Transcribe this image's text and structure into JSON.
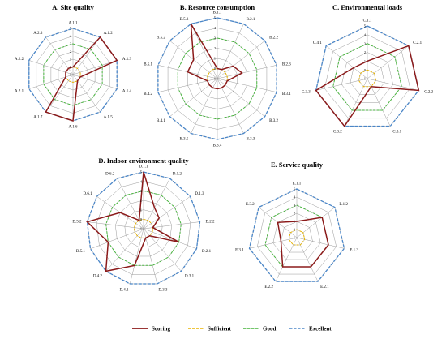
{
  "chart_data": [
    {
      "type": "radar",
      "title": "A. Site quality",
      "axes": [
        "A.1.1",
        "A.1.2",
        "A.1.3",
        "A.1.4",
        "A.1.5",
        "A.1.6",
        "A.1.7",
        "A.2.1",
        "A.2.2",
        "A.2.3"
      ],
      "range": [
        -1,
        5
      ],
      "ticks": [
        "-1",
        "0",
        "1",
        "2",
        "3",
        "4",
        "5"
      ],
      "series": [
        {
          "name": "Scoring",
          "values": [
            0,
            5,
            5,
            0,
            0,
            5,
            5,
            0,
            0,
            0
          ]
        },
        {
          "name": "Sufficient",
          "values": [
            0,
            0,
            0,
            0,
            0,
            0,
            0,
            0,
            0,
            0
          ]
        },
        {
          "name": "Good",
          "values": [
            3,
            3,
            3,
            3,
            3,
            3,
            3,
            3,
            3,
            3
          ]
        },
        {
          "name": "Excellent",
          "values": [
            5,
            5,
            5,
            5,
            5,
            5,
            5,
            5,
            5,
            5
          ]
        }
      ]
    },
    {
      "type": "radar",
      "title": "B. Resource consumption",
      "axes": [
        "B.1.1",
        "B.2.1",
        "B.2.2",
        "B.2.3",
        "B.3.1",
        "B.3.2",
        "B.3.3",
        "B.3.4",
        "B.3.5",
        "B.4.1",
        "B.4.2",
        "B.5.1",
        "B.5.2",
        "B.5.3"
      ],
      "range": [
        -1,
        5
      ],
      "ticks": [
        "-1",
        "0",
        "1",
        "2",
        "3",
        "4",
        "5"
      ],
      "series": [
        {
          "name": "Scoring",
          "values": [
            0,
            0,
            1,
            1.5,
            0,
            0,
            0,
            0,
            0,
            0,
            0,
            2,
            2,
            5
          ]
        },
        {
          "name": "Sufficient",
          "values": [
            0,
            0,
            0,
            0,
            0,
            0,
            0,
            0,
            0,
            0,
            0,
            0,
            0,
            0
          ]
        },
        {
          "name": "Good",
          "values": [
            3,
            3,
            3,
            3,
            3,
            3,
            3,
            3,
            3,
            3,
            3,
            3,
            3,
            3
          ]
        },
        {
          "name": "Excellent",
          "values": [
            5,
            5,
            5,
            5,
            5,
            5,
            5,
            5,
            5,
            5,
            5,
            5,
            5,
            5
          ]
        }
      ]
    },
    {
      "type": "radar",
      "title": "C. Environmental loads",
      "axes": [
        "C.1.1",
        "C.2.1",
        "C.2.2",
        "C.3.1",
        "C.3.2",
        "C.3.3",
        "C.4.1"
      ],
      "range": [
        -1,
        5
      ],
      "ticks": [
        "-1",
        "0",
        "1",
        "2",
        "3",
        "4",
        "5"
      ],
      "series": [
        {
          "name": "Scoring",
          "values": [
            1,
            5,
            5,
            0,
            5,
            5,
            1
          ]
        },
        {
          "name": "Sufficient",
          "values": [
            0,
            0,
            0,
            0,
            0,
            0,
            0
          ]
        },
        {
          "name": "Good",
          "values": [
            3,
            3,
            3,
            3,
            3,
            3,
            3
          ]
        },
        {
          "name": "Excellent",
          "values": [
            5,
            5,
            5,
            5,
            5,
            5,
            5
          ]
        }
      ]
    },
    {
      "type": "radar",
      "title": "D. Indoor environment quality",
      "axes": [
        "D.1.1",
        "D.1.2",
        "D.1.3",
        "D.2.2",
        "D.2.1",
        "D.3.1",
        "D.3.3",
        "D.4.1",
        "D.4.2",
        "D.5.1",
        "D.5.2",
        "D.6.1",
        "D.6.2"
      ],
      "range": [
        -1,
        5
      ],
      "ticks": [
        "-1",
        "0",
        "1",
        "2",
        "3",
        "4",
        "5"
      ],
      "series": [
        {
          "name": "Scoring",
          "values": [
            5,
            1.5,
            1,
            0,
            3,
            0,
            0,
            3,
            5,
            3,
            5,
            2,
            0
          ]
        },
        {
          "name": "Sufficient",
          "values": [
            0,
            0,
            0,
            0,
            0,
            0,
            0,
            0,
            0,
            0,
            0,
            0,
            0
          ]
        },
        {
          "name": "Good",
          "values": [
            3,
            3,
            3,
            3,
            3,
            3,
            3,
            3,
            3,
            3,
            3,
            3,
            3
          ]
        },
        {
          "name": "Excellent",
          "values": [
            5,
            5,
            5,
            5,
            5,
            5,
            5,
            5,
            5,
            5,
            5,
            5,
            5
          ]
        }
      ]
    },
    {
      "type": "radar",
      "title": "E. Service quality",
      "axes": [
        "E.1.1",
        "E.1.2",
        "E.1.3",
        "E.2.1",
        "E.2.2",
        "E.3.1",
        "E.3.2"
      ],
      "range": [
        -1,
        5
      ],
      "ticks": [
        "-1",
        "0",
        "1",
        "2",
        "3",
        "4",
        "5"
      ],
      "series": [
        {
          "name": "Scoring",
          "values": [
            1,
            3,
            3,
            3,
            3,
            1,
            2
          ]
        },
        {
          "name": "Sufficient",
          "values": [
            0,
            0,
            0,
            0,
            0,
            0,
            0
          ]
        },
        {
          "name": "Good",
          "values": [
            3,
            3,
            3,
            3,
            3,
            3,
            3
          ]
        },
        {
          "name": "Excellent",
          "values": [
            5,
            5,
            5,
            5,
            5,
            5,
            5
          ]
        }
      ]
    }
  ],
  "legend": {
    "placement": "bottom",
    "items": [
      {
        "label": "Scoring",
        "color": "#8B1A1A",
        "style": "solid"
      },
      {
        "label": "Sufficient",
        "color": "#E8B400",
        "style": "dashed"
      },
      {
        "label": "Good",
        "color": "#46B43C",
        "style": "dashed"
      },
      {
        "label": "Excellent",
        "color": "#4A86C8",
        "style": "dashed"
      }
    ]
  },
  "colors": {
    "scoring": "#8B1A1A",
    "sufficient": "#E8B400",
    "good": "#46B43C",
    "excellent": "#4A86C8",
    "grid": "#9a9a9a"
  }
}
